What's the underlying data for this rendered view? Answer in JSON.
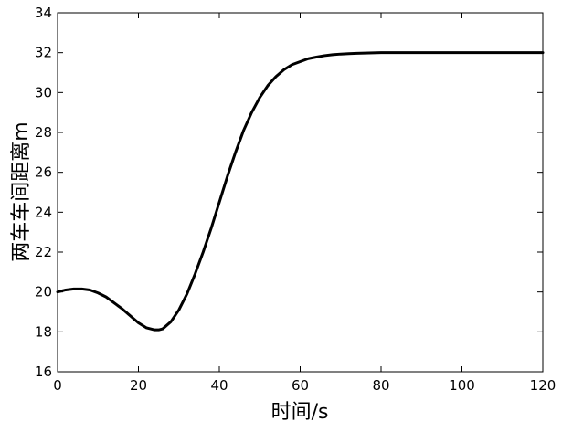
{
  "chart_data": {
    "type": "line",
    "title": "",
    "xlabel": "时间/s",
    "ylabel": "两车车间距离m",
    "xlim": [
      0,
      120
    ],
    "ylim": [
      16,
      34
    ],
    "xticks": [
      0,
      20,
      40,
      60,
      80,
      100,
      120
    ],
    "yticks": [
      16,
      18,
      20,
      22,
      24,
      26,
      28,
      30,
      32,
      34
    ],
    "grid": false,
    "legend": "none",
    "line_color": "#000000",
    "series": [
      {
        "x": [
          0,
          2,
          4,
          6,
          8,
          10,
          12,
          14,
          16,
          18,
          20,
          22,
          24,
          25,
          26,
          28,
          30,
          32,
          34,
          36,
          38,
          40,
          42,
          44,
          46,
          48,
          50,
          52,
          54,
          56,
          58,
          60,
          62,
          64,
          66,
          68,
          70,
          72,
          74,
          76,
          78,
          80,
          85,
          90,
          100,
          110,
          120
        ],
        "y": [
          20.0,
          20.1,
          20.15,
          20.15,
          20.1,
          19.95,
          19.75,
          19.45,
          19.15,
          18.8,
          18.45,
          18.2,
          18.1,
          18.1,
          18.15,
          18.5,
          19.1,
          19.9,
          20.9,
          22.0,
          23.2,
          24.5,
          25.8,
          27.0,
          28.1,
          29.0,
          29.75,
          30.35,
          30.8,
          31.15,
          31.4,
          31.55,
          31.7,
          31.78,
          31.85,
          31.9,
          31.93,
          31.95,
          31.97,
          31.98,
          31.99,
          32.0,
          32.0,
          32.0,
          32.0,
          32.0,
          32.0
        ]
      }
    ]
  }
}
